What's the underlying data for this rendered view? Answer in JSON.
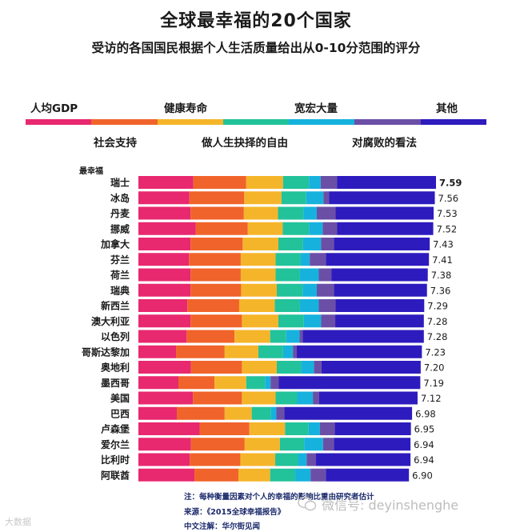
{
  "title": "全球最幸福的20个国家",
  "subtitle": "受访的各国国民根据个人生活质量给出从0-10分范围的评分",
  "legend": {
    "top": [
      "人均GDP",
      "健康寿命",
      "宽宏大量",
      "其他"
    ],
    "bottom": [
      "社会支持",
      "做人生抉择的自由",
      "对腐败的看法"
    ]
  },
  "best_label": "最幸福",
  "colors": [
    "#e8286f",
    "#f0632a",
    "#f5b52a",
    "#22c29a",
    "#16b2dd",
    "#6b4fa6",
    "#2d1bbe"
  ],
  "chart_data": {
    "type": "bar",
    "orientation": "horizontal",
    "stacked": true,
    "title": "全球最幸福的20个国家",
    "subtitle": "受访的各国国民根据个人生活质量给出从0-10分范围的评分",
    "series_names": [
      "人均GDP",
      "社会支持",
      "健康寿命",
      "做人生抉择的自由",
      "宽宏大量",
      "对腐败的看法",
      "其他"
    ],
    "categories": [
      "瑞士",
      "冰岛",
      "丹麦",
      "挪威",
      "加拿大",
      "芬兰",
      "荷兰",
      "瑞典",
      "新西兰",
      "澳大利亚",
      "以色列",
      "哥斯达黎加",
      "奥地利",
      "墨西哥",
      "美国",
      "巴西",
      "卢森堡",
      "爱尔兰",
      "比利时",
      "阿联酋"
    ],
    "totals": [
      7.59,
      7.56,
      7.53,
      7.52,
      7.43,
      7.41,
      7.38,
      7.36,
      7.29,
      7.28,
      7.28,
      7.23,
      7.2,
      7.19,
      7.12,
      6.98,
      6.95,
      6.94,
      6.94,
      6.9
    ],
    "total_labels": [
      "7.59",
      "7.56",
      "7.53",
      "7.52",
      "7.43",
      "7.41",
      "7.38",
      "7.36",
      "7.29",
      "7.28",
      "7.28",
      "7.23",
      "7.20",
      "7.19",
      "7.12",
      "6.98",
      "6.95",
      "6.94",
      "6.94",
      "6.90"
    ],
    "segments": [
      [
        1.4,
        1.35,
        0.94,
        0.66,
        0.3,
        0.42,
        2.52
      ],
      [
        1.3,
        1.4,
        0.95,
        0.63,
        0.44,
        0.14,
        2.7
      ],
      [
        1.33,
        1.36,
        0.87,
        0.65,
        0.34,
        0.48,
        2.5
      ],
      [
        1.46,
        1.33,
        0.89,
        0.67,
        0.35,
        0.37,
        2.45
      ],
      [
        1.33,
        1.33,
        0.91,
        0.63,
        0.46,
        0.33,
        2.44
      ],
      [
        1.29,
        1.32,
        0.89,
        0.64,
        0.23,
        0.41,
        2.63
      ],
      [
        1.33,
        1.28,
        0.89,
        0.62,
        0.48,
        0.32,
        2.46
      ],
      [
        1.33,
        1.29,
        0.91,
        0.66,
        0.36,
        0.44,
        2.37
      ],
      [
        1.25,
        1.32,
        0.91,
        0.64,
        0.48,
        0.43,
        2.26
      ],
      [
        1.33,
        1.31,
        0.93,
        0.65,
        0.44,
        0.36,
        2.26
      ],
      [
        1.23,
        1.22,
        0.91,
        0.41,
        0.34,
        0.08,
        3.09
      ],
      [
        0.96,
        1.24,
        0.86,
        0.63,
        0.25,
        0.1,
        3.19
      ],
      [
        1.34,
        1.3,
        0.89,
        0.62,
        0.33,
        0.19,
        2.53
      ],
      [
        1.02,
        0.92,
        0.81,
        0.48,
        0.14,
        0.21,
        3.61
      ],
      [
        1.39,
        1.25,
        0.86,
        0.55,
        0.4,
        0.16,
        2.51
      ],
      [
        0.98,
        1.22,
        0.69,
        0.49,
        0.14,
        0.2,
        3.26
      ],
      [
        1.56,
        1.27,
        0.91,
        0.6,
        0.29,
        0.38,
        1.94
      ],
      [
        1.34,
        1.37,
        0.9,
        0.62,
        0.48,
        0.28,
        1.95
      ],
      [
        1.31,
        1.29,
        0.89,
        0.58,
        0.22,
        0.24,
        2.41
      ],
      [
        1.43,
        1.12,
        0.81,
        0.64,
        0.39,
        0.39,
        2.12
      ]
    ],
    "xlim": [
      0,
      7.59
    ]
  },
  "notes": [
    "注：每种衡量因素对个人的幸福的影响比重由研究者估计",
    "来源：《2015全球幸福报告》",
    "中文注解：华尔街见闻"
  ],
  "watermark_left": "大数据",
  "watermark_right": "微信号: deyinshenghe"
}
